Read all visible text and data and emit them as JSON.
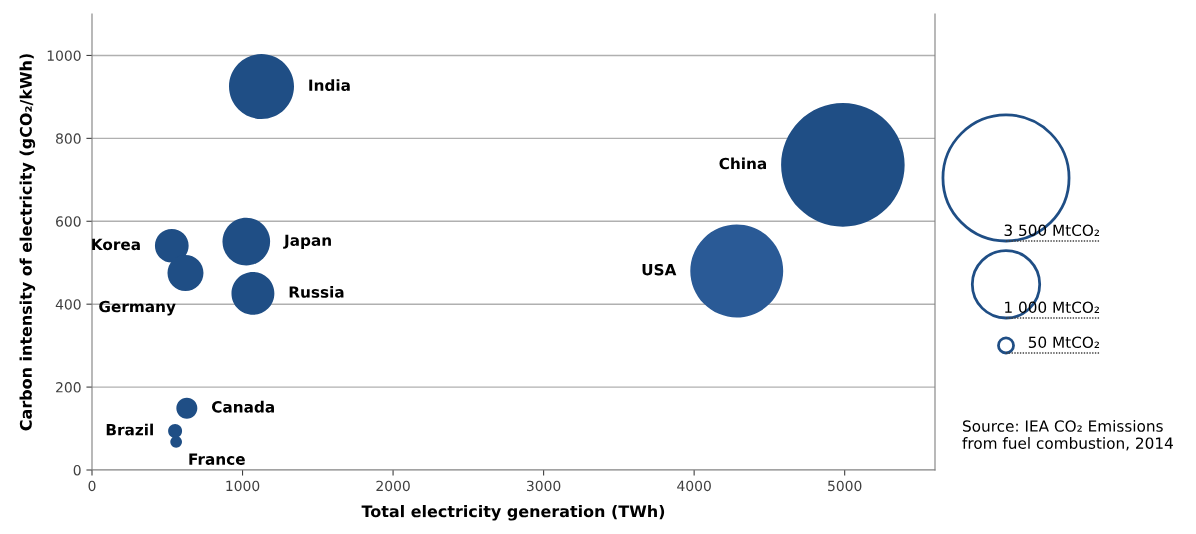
{
  "chart_data": {
    "type": "bubble",
    "xlabel": "Total electricity generation (TWh)",
    "ylabel": "Carbon intensity of electricity (gCO₂/kWh)",
    "xlim": [
      0,
      5600
    ],
    "xticks": [
      0,
      1000,
      2000,
      3000,
      4000,
      5000
    ],
    "ylim": [
      0,
      1100
    ],
    "yticks": [
      0,
      200,
      400,
      600,
      800,
      1000
    ],
    "grid": "y",
    "legend": false,
    "size_legend": [
      {
        "value": 3500,
        "label": "3 500 MtCO₂"
      },
      {
        "value": 1000,
        "label": "1 000 MtCO₂"
      },
      {
        "value": 50,
        "label": "50 MtCO₂"
      }
    ],
    "series": [
      {
        "name": "India",
        "color": "#1f4e85",
        "x": [
          1126
        ],
        "values": [
          925
        ],
        "sizes": [
          930
        ]
      },
      {
        "name": "China",
        "color": "#1f4e85",
        "x": [
          4988
        ],
        "values": [
          736
        ],
        "sizes": [
          3360
        ]
      },
      {
        "name": "USA",
        "color": "#2a5a96",
        "x": [
          4283
        ],
        "values": [
          480
        ],
        "sizes": [
          1900
        ]
      },
      {
        "name": "Japan",
        "color": "#1f4e85",
        "x": [
          1025
        ],
        "values": [
          551
        ],
        "sizes": [
          500
        ]
      },
      {
        "name": "Korea",
        "color": "#1f4e85",
        "x": [
          530
        ],
        "values": [
          541
        ],
        "sizes": [
          250
        ]
      },
      {
        "name": "Germany",
        "color": "#1f4e85",
        "x": [
          621
        ],
        "values": [
          475
        ],
        "sizes": [
          285
        ]
      },
      {
        "name": "Russia",
        "color": "#1f4e85",
        "x": [
          1069
        ],
        "values": [
          426
        ],
        "sizes": [
          405
        ]
      },
      {
        "name": "Canada",
        "color": "#1f4e85",
        "x": [
          630
        ],
        "values": [
          149
        ],
        "sizes": [
          97
        ]
      },
      {
        "name": "Brazil",
        "color": "#1f4e85",
        "x": [
          552
        ],
        "values": [
          94
        ],
        "sizes": [
          43
        ]
      },
      {
        "name": "France",
        "color": "#1f4e85",
        "x": [
          559
        ],
        "values": [
          68
        ],
        "sizes": [
          30
        ]
      }
    ],
    "annotations": [
      "Source: IEA CO₂ Emissions from fuel combustion, 2014"
    ]
  }
}
